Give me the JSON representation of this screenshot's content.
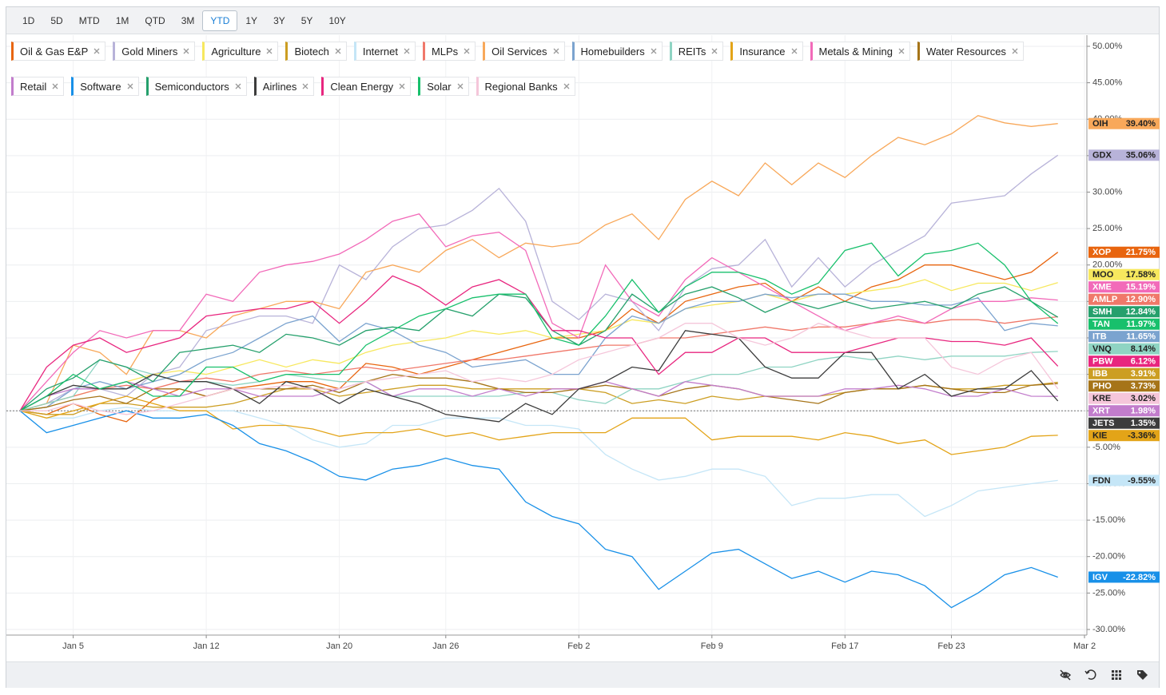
{
  "toolbar": {
    "periods": [
      "1D",
      "5D",
      "MTD",
      "1M",
      "QTD",
      "3M",
      "YTD",
      "1Y",
      "3Y",
      "5Y",
      "10Y"
    ],
    "selected": "YTD"
  },
  "chart_data": {
    "type": "line",
    "categories": [
      null,
      null,
      "Jan 5",
      null,
      null,
      null,
      null,
      "Jan 12",
      null,
      null,
      null,
      null,
      "Jan 20",
      null,
      null,
      null,
      "Jan 26",
      null,
      null,
      null,
      null,
      "Feb 2",
      null,
      null,
      null,
      null,
      "Feb 9",
      null,
      null,
      null,
      null,
      "Feb 17",
      null,
      null,
      null,
      "Feb 23",
      null,
      null,
      null,
      null,
      "Mar 2"
    ],
    "ylim": [
      -30.77,
      51.53
    ],
    "yticks": [
      {
        "value": -30,
        "label": "-30.00%"
      },
      {
        "value": -25,
        "label": "-25.00%"
      },
      {
        "value": -20,
        "label": "-20.00%"
      },
      {
        "value": -15,
        "label": "-15.00%"
      },
      {
        "value": -10,
        "label": "-10.00%"
      },
      {
        "value": -5,
        "label": "-5.00%"
      },
      {
        "value": 0,
        "label": "0.00%"
      },
      {
        "value": 5,
        "label": "5.00%"
      },
      {
        "value": 10,
        "label": "10.00%"
      },
      {
        "value": 15,
        "label": "15.00%"
      },
      {
        "value": 20,
        "label": "20.00%"
      },
      {
        "value": 25,
        "label": "25.00%"
      },
      {
        "value": 30,
        "label": "30.00%"
      },
      {
        "value": 35,
        "label": "35.00%"
      },
      {
        "value": 40,
        "label": "40.00%"
      },
      {
        "value": 45,
        "label": "45.00%"
      },
      {
        "value": 50,
        "label": "50.00%"
      }
    ],
    "grid": true,
    "series": [
      {
        "name": "Oil & Gas E&P",
        "ticker": "XOP",
        "color": "#e8650f",
        "value_label": "21.75%",
        "values": [
          0,
          -0.5,
          1,
          -0.5,
          -1.5,
          1.5,
          3,
          2,
          3,
          3.5,
          4,
          4,
          3,
          6.5,
          6,
          5,
          6,
          7,
          8,
          9,
          10,
          10,
          11,
          14,
          12,
          15,
          16,
          17,
          17.5,
          15,
          17,
          15,
          17,
          18,
          20,
          20,
          19,
          18,
          19,
          21.75,
          null
        ]
      },
      {
        "name": "Gold Miners",
        "ticker": "GDX",
        "color": "#b8b3d9",
        "value_label": "35.06%",
        "values": [
          0,
          1,
          3,
          3,
          2,
          5,
          6,
          11,
          12,
          13,
          13,
          12,
          20,
          18,
          22.5,
          25,
          25.5,
          27.5,
          30.5,
          26,
          15,
          12.5,
          16,
          15,
          11,
          17,
          19.5,
          20,
          23.5,
          17,
          21,
          17,
          20,
          22,
          24,
          28.5,
          29,
          29.5,
          32.5,
          35.06,
          null
        ]
      },
      {
        "name": "Agriculture",
        "ticker": "MOO",
        "color": "#f7e85e",
        "value_label": "17.58%",
        "values": [
          0,
          1,
          2,
          3,
          4,
          5,
          5.5,
          5,
          6,
          7,
          6,
          7,
          6.5,
          8,
          9,
          9.5,
          10,
          11,
          10.5,
          11,
          10,
          10.5,
          11,
          12.5,
          12,
          14,
          14.5,
          15,
          16,
          15,
          16,
          16,
          16.5,
          17,
          18,
          16.5,
          17.5,
          17.5,
          16.5,
          17.58,
          null
        ]
      },
      {
        "name": "Biotech",
        "ticker": "IBB",
        "color": "#cc9e22",
        "value_label": "3.91%",
        "values": [
          0,
          -0.5,
          -0.5,
          1,
          1,
          0.5,
          0.5,
          0.5,
          1,
          2,
          3,
          3,
          2,
          2.5,
          3,
          3.5,
          3.5,
          3,
          3,
          3,
          3,
          3,
          2.5,
          1,
          1.5,
          1,
          2,
          1.5,
          2,
          2,
          2,
          2.5,
          3,
          3,
          3.5,
          3,
          3,
          3.5,
          3.5,
          3.91,
          null
        ]
      },
      {
        "name": "Internet",
        "ticker": "FDN",
        "color": "#c5e6f7",
        "value_label": "-9.55%",
        "values": [
          0,
          -1,
          -1,
          0,
          0.5,
          0,
          0,
          0,
          0,
          -1,
          -2,
          -4,
          -5,
          -4.5,
          -2,
          -2,
          -1,
          -1,
          -1,
          -2,
          -2,
          -2.5,
          -6,
          -8,
          -9.5,
          -9,
          -8,
          -8,
          -9,
          -13,
          -12,
          -12,
          -11.5,
          -11.5,
          -14.5,
          -13,
          -11,
          -10.5,
          -10,
          -9.55,
          null
        ]
      },
      {
        "name": "MLPs",
        "ticker": "AMLP",
        "color": "#f0786a",
        "value_label": "12.90%",
        "values": [
          0,
          1,
          2,
          3,
          3.5,
          3,
          4,
          4.5,
          4,
          5,
          5.5,
          5,
          5.5,
          6,
          5.5,
          6,
          6.5,
          7,
          7,
          7.5,
          8,
          8.5,
          9,
          9,
          10,
          10,
          10.5,
          11,
          11.5,
          11,
          11.5,
          11.5,
          12,
          12.5,
          12,
          12.5,
          12.5,
          12,
          12.5,
          12.9,
          null
        ]
      },
      {
        "name": "Oil Services",
        "ticker": "OIH",
        "color": "#f8a85a",
        "value_label": "39.40%",
        "values": [
          0,
          1,
          9,
          8,
          5,
          11,
          11,
          10,
          13,
          14,
          15,
          15,
          14,
          19,
          20,
          19,
          22,
          23.5,
          21,
          23,
          22.5,
          23,
          25.5,
          27,
          23.5,
          29,
          31.5,
          29.5,
          34,
          31,
          34,
          32,
          35,
          37.5,
          36.5,
          38,
          40.5,
          39.5,
          39,
          39.4,
          null
        ]
      },
      {
        "name": "Homebuilders",
        "ticker": "ITB",
        "color": "#7ba3cf",
        "value_label": "11.65%",
        "values": [
          0,
          0.5,
          3,
          4,
          3,
          4,
          5,
          7,
          8,
          10,
          12,
          13,
          9.5,
          12,
          11,
          9,
          8,
          6,
          6.5,
          7,
          5,
          5,
          10,
          13,
          12,
          14,
          15,
          15,
          16,
          15.5,
          16,
          16,
          15,
          15,
          14.5,
          14.5,
          15.5,
          11,
          12,
          11.65,
          null
        ]
      },
      {
        "name": "REITs",
        "ticker": "VNQ",
        "color": "#8fd4c3",
        "value_label": "8.14%",
        "values": [
          0,
          1,
          2,
          7,
          6,
          5,
          4,
          4,
          3.5,
          4,
          5,
          4.5,
          4,
          4,
          2,
          2,
          2,
          2,
          2,
          2.5,
          2.5,
          1.5,
          1,
          3,
          3,
          4,
          5,
          5,
          6,
          6,
          7,
          7.5,
          7,
          7.5,
          7,
          7.5,
          7.5,
          7.5,
          8,
          8.14,
          null
        ]
      },
      {
        "name": "Insurance",
        "ticker": "KIE",
        "color": "#e3a418",
        "value_label": "-3.36%",
        "values": [
          0,
          -1,
          0,
          1,
          2,
          1,
          0,
          0,
          -2.5,
          -2,
          -2,
          -2.5,
          -3.5,
          -3,
          -3,
          -2.5,
          -3.5,
          -3,
          -4,
          -3.5,
          -3,
          -3,
          -3,
          -1,
          -1,
          -1,
          -4,
          -3.5,
          -3.5,
          -3.5,
          -4,
          -3,
          -3.5,
          -4.5,
          -4,
          -6,
          -5.5,
          -5,
          -3.5,
          -3.36,
          null
        ]
      },
      {
        "name": "Metals & Mining",
        "ticker": "XME",
        "color": "#f26ab9",
        "value_label": "15.19%",
        "values": [
          0,
          4,
          8,
          11,
          10,
          11,
          11,
          16,
          15,
          19,
          20,
          20.5,
          21.5,
          23.5,
          26,
          27,
          22.5,
          24,
          24.5,
          22,
          12,
          10,
          20,
          15,
          13,
          18,
          21,
          19,
          17,
          15,
          13,
          11,
          12,
          13,
          12,
          14,
          15,
          15,
          15.5,
          15.19,
          null
        ]
      },
      {
        "name": "Water Resources",
        "ticker": "PHO",
        "color": "#a67418",
        "value_label": "3.73%",
        "values": [
          0,
          0.5,
          1.5,
          2,
          1,
          3,
          3,
          2,
          3,
          3,
          3,
          3.5,
          2.5,
          4,
          5,
          4.5,
          4.5,
          4,
          3,
          2.5,
          2.5,
          3,
          3.5,
          3,
          2,
          3,
          3.5,
          3,
          2,
          1.5,
          1,
          2.5,
          3,
          3,
          3.5,
          3,
          2.5,
          2.5,
          3.5,
          3.73,
          null
        ]
      },
      {
        "name": "Retail",
        "ticker": "XRT",
        "color": "#c27dcc",
        "value_label": "1.98%",
        "values": [
          0,
          2,
          3,
          3,
          4,
          3,
          2,
          3,
          3,
          2,
          2,
          2,
          3,
          4,
          2,
          3,
          3,
          2,
          3,
          2,
          3,
          3,
          4,
          3,
          2,
          4,
          3.5,
          3,
          2,
          2,
          2,
          3,
          3,
          3.5,
          3,
          2,
          2,
          3,
          2,
          1.98,
          null
        ]
      },
      {
        "name": "Software",
        "ticker": "IGV",
        "color": "#1890e8",
        "value_label": "-22.82%",
        "values": [
          0,
          -3,
          -2,
          -1,
          0,
          -1,
          -1,
          -0.5,
          -2,
          -4.5,
          -5.5,
          -7,
          -9,
          -9.5,
          -8,
          -7.5,
          -6.5,
          -7.5,
          -8,
          -12.5,
          -14.5,
          -15.5,
          -19,
          -20,
          -24.5,
          -22,
          -19.5,
          -19,
          -21,
          -23,
          -22,
          -23.5,
          -22,
          -22.5,
          -24,
          -27,
          -25,
          -22.5,
          -21.5,
          -22.82,
          null
        ]
      },
      {
        "name": "Semiconductors",
        "ticker": "SMH",
        "color": "#25a06c",
        "value_label": "12.84%",
        "values": [
          0,
          3,
          4.5,
          7,
          6,
          4,
          8,
          8.5,
          9,
          8,
          10.5,
          10,
          9,
          11,
          11.5,
          11,
          14,
          13,
          16,
          15.5,
          11,
          9,
          11,
          16,
          13.5,
          16,
          17,
          15.5,
          13.5,
          15,
          14,
          15,
          14,
          14.5,
          15,
          14,
          16,
          17,
          15,
          12.84,
          null
        ]
      },
      {
        "name": "Airlines",
        "ticker": "JETS",
        "color": "#3c3c3c",
        "value_label": "1.35%",
        "values": [
          0,
          2,
          3.5,
          3,
          3,
          5,
          4,
          4,
          3,
          1,
          4,
          3,
          1,
          3,
          2,
          1,
          -0.5,
          -1,
          -1.5,
          1,
          -0.5,
          3,
          4,
          6,
          5.5,
          11,
          10.5,
          10,
          6,
          4.5,
          4.5,
          8,
          8,
          3,
          5,
          2,
          3,
          3,
          5.5,
          1.35,
          null
        ]
      },
      {
        "name": "Clean Energy",
        "ticker": "PBW",
        "color": "#e8267f",
        "value_label": "6.12%",
        "values": [
          0,
          6,
          9,
          10,
          8,
          9,
          10,
          13,
          13.5,
          14,
          14,
          15,
          12,
          15,
          18.5,
          17,
          14.5,
          17,
          18,
          16,
          11,
          11,
          10,
          10,
          5,
          8,
          8,
          10,
          10,
          8,
          8,
          8,
          9,
          10,
          10,
          9.5,
          9.5,
          9,
          10,
          6.12,
          null
        ]
      },
      {
        "name": "Solar",
        "ticker": "TAN",
        "color": "#18c06c",
        "value_label": "11.97%",
        "values": [
          0,
          2,
          5,
          3,
          4,
          2,
          2,
          6,
          6,
          4,
          5,
          5,
          5,
          9,
          11,
          13,
          14,
          15.5,
          16,
          16,
          10,
          9,
          13,
          18,
          13.5,
          17,
          19,
          19,
          18,
          16,
          17.5,
          22,
          23,
          18.5,
          21.5,
          22,
          23,
          20,
          15,
          11.97,
          null
        ]
      },
      {
        "name": "Regional Banks",
        "ticker": "KRE",
        "color": "#f5c6da",
        "value_label": "3.02%",
        "values": [
          0,
          0,
          1,
          0,
          -0.5,
          0,
          1,
          2,
          3,
          3,
          3.5,
          3,
          3,
          4,
          4.5,
          5,
          5.5,
          4,
          4.5,
          4,
          5,
          7,
          8,
          9,
          10,
          12,
          12,
          10,
          9,
          10,
          12,
          11,
          10,
          10,
          10,
          6,
          5,
          7,
          8,
          3.02,
          null
        ]
      }
    ]
  }
}
